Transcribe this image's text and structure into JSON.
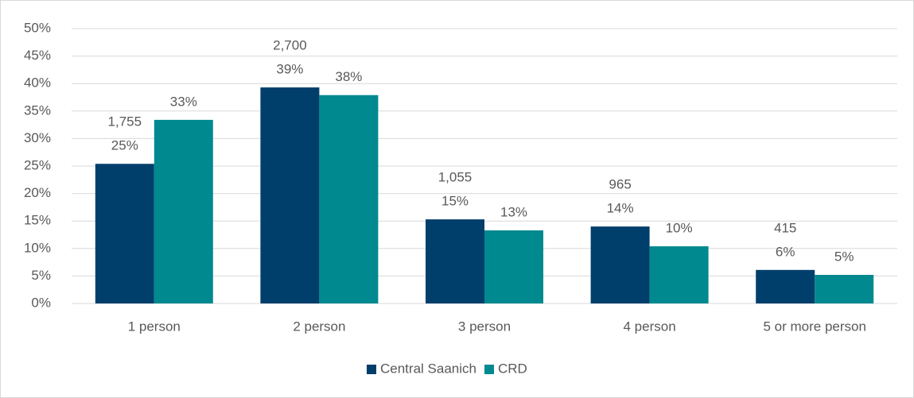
{
  "chart_data": {
    "type": "bar",
    "categories": [
      "1 person",
      "2 person",
      "3 person",
      "4 person",
      "5 or more person"
    ],
    "series": [
      {
        "name": "Central Saanich",
        "color": "#003f6b",
        "values": [
          25.4,
          39.3,
          15.3,
          14.0,
          6.1
        ],
        "value_labels": [
          "25%",
          "39%",
          "15%",
          "14%",
          "6%"
        ],
        "count_labels": [
          "1,755",
          "2,700",
          "1,055",
          "965",
          "415"
        ]
      },
      {
        "name": "CRD",
        "color": "#00898f",
        "values": [
          33.4,
          37.9,
          13.3,
          10.4,
          5.2
        ],
        "value_labels": [
          "33%",
          "38%",
          "13%",
          "10%",
          "5%"
        ]
      }
    ],
    "ylim": [
      0,
      50
    ],
    "yticks": [
      {
        "value": 0,
        "label": "0%"
      },
      {
        "value": 5,
        "label": "5%"
      },
      {
        "value": 10,
        "label": "10%"
      },
      {
        "value": 15,
        "label": "15%"
      },
      {
        "value": 20,
        "label": "20%"
      },
      {
        "value": 25,
        "label": "25%"
      },
      {
        "value": 30,
        "label": "30%"
      },
      {
        "value": 35,
        "label": "35%"
      },
      {
        "value": 40,
        "label": "40%"
      },
      {
        "value": 45,
        "label": "45%"
      },
      {
        "value": 50,
        "label": "50%"
      }
    ],
    "grid": true,
    "legend": "bottom"
  }
}
